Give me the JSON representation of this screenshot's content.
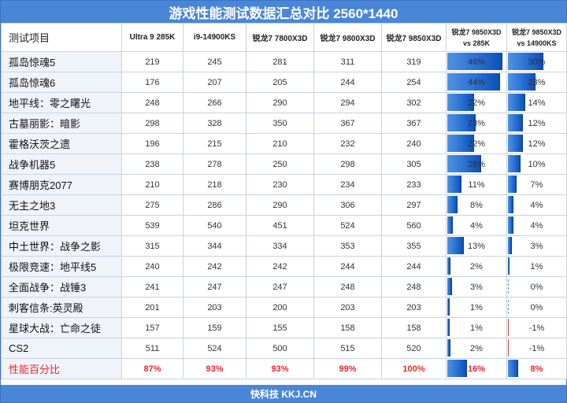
{
  "title": "游戏性能测试数据汇总对比 2560*1440",
  "footer": "快科技 KKJ.CN",
  "colors": {
    "header": "#4a86d8",
    "bar": "#1e66cc",
    "highlight": "#e8282a",
    "negative": "#d84040"
  },
  "chart_data": {
    "type": "table",
    "columns": [
      "测试项目",
      "Ultra 9 285K",
      "i9-14900KS",
      "锐龙7 7800X3D",
      "锐龙7 9800X3D",
      "锐龙7 9850X3D",
      "锐龙7 9850X3D vs 285K",
      "锐龙7 9850X3D vs 14900KS"
    ],
    "comparison_headers": [
      {
        "line1": "锐龙7 9850X3D",
        "line2": "vs 285K"
      },
      {
        "line1": "锐龙7 9850X3D",
        "line2": "vs 14900KS"
      }
    ],
    "rows": [
      {
        "game": "孤岛惊魂5",
        "values": [
          219,
          245,
          281,
          311,
          319
        ],
        "vs_285k": 46,
        "vs_14900ks": 30
      },
      {
        "game": "孤岛惊魂6",
        "values": [
          176,
          207,
          205,
          244,
          254
        ],
        "vs_285k": 44,
        "vs_14900ks": 23
      },
      {
        "game": "地平线：零之曙光",
        "values": [
          248,
          266,
          290,
          294,
          302
        ],
        "vs_285k": 22,
        "vs_14900ks": 14
      },
      {
        "game": "古墓丽影：暗影",
        "values": [
          298,
          328,
          350,
          367,
          367
        ],
        "vs_285k": 23,
        "vs_14900ks": 12
      },
      {
        "game": "霍格沃茨之遗",
        "values": [
          196,
          215,
          210,
          232,
          240
        ],
        "vs_285k": 22,
        "vs_14900ks": 12
      },
      {
        "game": "战争机器5",
        "values": [
          238,
          278,
          250,
          298,
          305
        ],
        "vs_285k": 28,
        "vs_14900ks": 10
      },
      {
        "game": "赛博朋克2077",
        "values": [
          210,
          218,
          230,
          234,
          233
        ],
        "vs_285k": 11,
        "vs_14900ks": 7
      },
      {
        "game": "无主之地3",
        "values": [
          275,
          286,
          290,
          306,
          297
        ],
        "vs_285k": 8,
        "vs_14900ks": 4
      },
      {
        "game": "坦克世界",
        "values": [
          539,
          540,
          451,
          524,
          560
        ],
        "vs_285k": 4,
        "vs_14900ks": 4
      },
      {
        "game": "中土世界：战争之影",
        "values": [
          315,
          344,
          334,
          353,
          355
        ],
        "vs_285k": 13,
        "vs_14900ks": 3
      },
      {
        "game": "极限竞速：地平线5",
        "values": [
          240,
          242,
          242,
          244,
          244
        ],
        "vs_285k": 2,
        "vs_14900ks": 1
      },
      {
        "game": "全面战争：战锤3",
        "values": [
          241,
          247,
          247,
          248,
          248
        ],
        "vs_285k": 3,
        "vs_14900ks": 0
      },
      {
        "game": "刺客信条:英灵殿",
        "values": [
          201,
          203,
          200,
          203,
          203
        ],
        "vs_285k": 1,
        "vs_14900ks": 0
      },
      {
        "game": "星球大战：亡命之徒",
        "values": [
          157,
          159,
          155,
          158,
          158
        ],
        "vs_285k": 1,
        "vs_14900ks": -1
      },
      {
        "game": "CS2",
        "values": [
          511,
          524,
          500,
          515,
          520
        ],
        "vs_285k": 2,
        "vs_14900ks": -1
      }
    ],
    "summary": {
      "game": "性能百分比",
      "values": [
        "87%",
        "93%",
        "93%",
        "99%",
        "100%"
      ],
      "vs_285k": 16,
      "vs_14900ks": 8
    },
    "bar_scale_max_pct": 50
  }
}
